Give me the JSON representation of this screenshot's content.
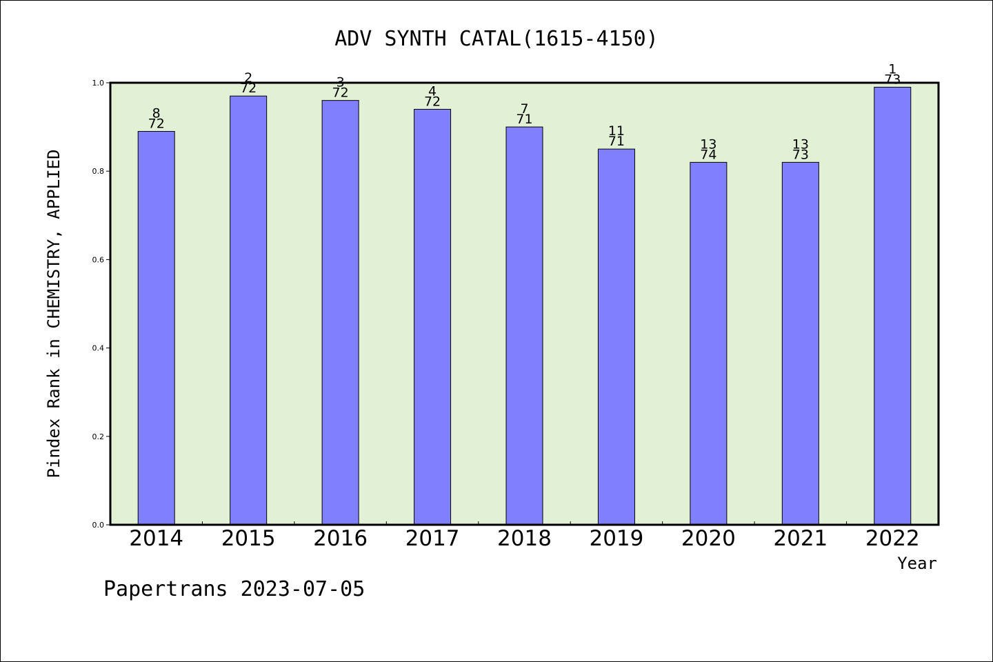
{
  "chart_data": {
    "type": "bar",
    "title": "ADV SYNTH CATAL(1615-4150)",
    "xlabel": "Year",
    "ylabel": "Pindex Rank in CHEMISTRY, APPLIED",
    "ylim": [
      0,
      1.0
    ],
    "yticks": [
      "0.0",
      "0.2",
      "0.4",
      "0.6",
      "0.8",
      "1.0"
    ],
    "grid": false,
    "categories": [
      "2014",
      "2015",
      "2016",
      "2017",
      "2018",
      "2019",
      "2020",
      "2021",
      "2022"
    ],
    "values": [
      0.89,
      0.97,
      0.96,
      0.94,
      0.9,
      0.85,
      0.82,
      0.82,
      0.99
    ],
    "rank": [
      "8",
      "2",
      "3",
      "4",
      "7",
      "11",
      "13",
      "13",
      "1"
    ],
    "total": [
      "72",
      "72",
      "72",
      "72",
      "71",
      "71",
      "74",
      "73",
      "73"
    ],
    "footer": "Papertrans 2023-07-05"
  },
  "colors": {
    "plot_background": "#e2f0d6",
    "bar_fill": "#8080ff",
    "bar_stroke": "#000000",
    "axis": "#000000"
  }
}
